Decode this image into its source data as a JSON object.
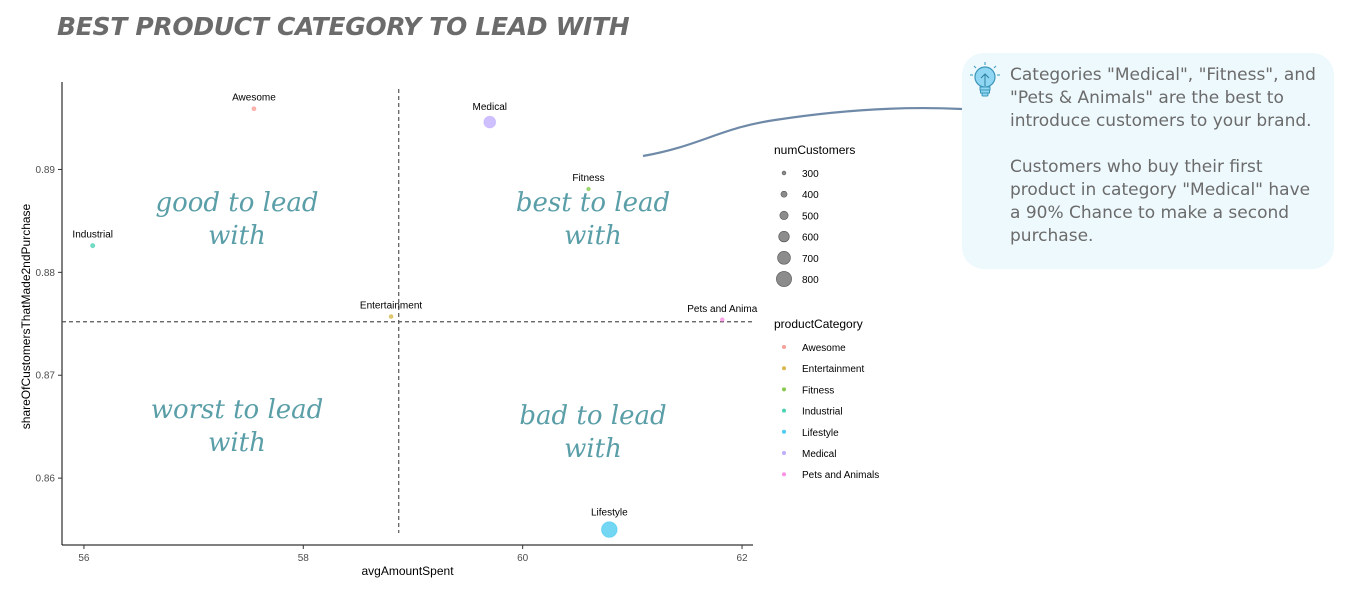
{
  "title": "BEST PRODUCT CATEGORY TO LEAD WITH",
  "callout": {
    "paragraph1": "Categories \"Medical\", \"Fitness\", and \"Pets & Animals\" are the best to introduce customers to your brand.",
    "paragraph2": "Customers who buy their first product in category \"Medical\" have a 90% Chance to make a second purchase."
  },
  "quadrant_labels": {
    "top_left": [
      "good to lead",
      "with"
    ],
    "top_right": [
      "best to lead",
      "with"
    ],
    "bottom_left": [
      "worst to lead",
      "with"
    ],
    "bottom_right": [
      "bad to lead",
      "with"
    ]
  },
  "colors": {
    "Awesome": "#f8766d",
    "Entertainment": "#c49a00",
    "Fitness": "#53b400",
    "Industrial": "#00c094",
    "Lifestyle": "#00b6eb",
    "Medical": "#a58aff",
    "Pets and Animals": "#fb61d7",
    "quadrant_text": "#5a9ea8",
    "callout_bg": "#eef9fd",
    "connector": "#6f8aa8"
  },
  "chart_data": {
    "type": "scatter",
    "xlabel": "avgAmountSpent",
    "ylabel": "shareOfCustomersThatMade2ndPurchase",
    "xlim": [
      55.8,
      62.1
    ],
    "ylim": [
      0.8535,
      0.8985
    ],
    "xticks": [
      56,
      58,
      60,
      62
    ],
    "yticks": [
      0.86,
      0.87,
      0.88,
      0.89
    ],
    "xtick_labels": [
      "56",
      "58",
      "60",
      "62"
    ],
    "ytick_labels": [
      "0.86",
      "0.87",
      "0.88",
      "0.89"
    ],
    "vline_x": 58.87,
    "hline_y": 0.8752,
    "grid": false,
    "points": [
      {
        "label": "Awesome",
        "x": 57.55,
        "y": 0.8959,
        "size": 310
      },
      {
        "label": "Medical",
        "x": 59.7,
        "y": 0.8946,
        "size": 650
      },
      {
        "label": "Fitness",
        "x": 60.6,
        "y": 0.8881,
        "size": 290
      },
      {
        "label": "Industrial",
        "x": 56.08,
        "y": 0.8826,
        "size": 320
      },
      {
        "label": "Entertainment",
        "x": 58.8,
        "y": 0.8757,
        "size": 300
      },
      {
        "label": "Pets and Anima",
        "x": 61.82,
        "y": 0.8754,
        "size": 300
      },
      {
        "label": "Lifestyle",
        "x": 60.79,
        "y": 0.855,
        "size": 820
      }
    ],
    "legend_size": {
      "title": "numCustomers",
      "values": [
        300,
        400,
        500,
        600,
        700,
        800
      ]
    },
    "legend_category": {
      "title": "productCategory",
      "entries": [
        "Awesome",
        "Entertainment",
        "Fitness",
        "Industrial",
        "Lifestyle",
        "Medical",
        "Pets and Animals"
      ]
    }
  }
}
